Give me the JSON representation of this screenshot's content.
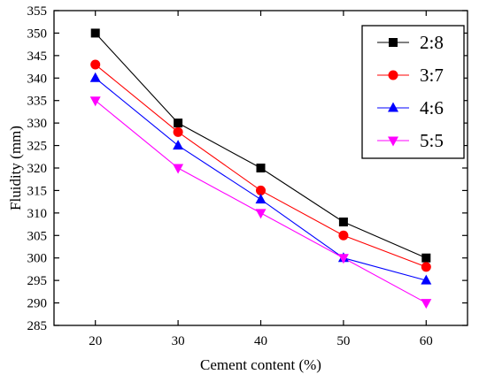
{
  "chart_data": {
    "type": "line",
    "title": "",
    "xlabel": "Cement content (%)",
    "ylabel": "Fluidity (mm)",
    "x": [
      20,
      30,
      40,
      50,
      60
    ],
    "xticks": [
      20,
      30,
      40,
      50,
      60
    ],
    "xlim": [
      15,
      65
    ],
    "yticks": [
      285,
      290,
      295,
      300,
      305,
      310,
      315,
      320,
      325,
      330,
      335,
      340,
      345,
      350,
      355
    ],
    "ylim": [
      285,
      355
    ],
    "grid": false,
    "legend_position": "top-right",
    "series": [
      {
        "name": "2:8",
        "values": [
          350,
          330,
          320,
          308,
          300
        ],
        "color": "#000000",
        "marker": "square"
      },
      {
        "name": "3:7",
        "values": [
          343,
          328,
          315,
          305,
          298
        ],
        "color": "#ff0000",
        "marker": "circle"
      },
      {
        "name": "4:6",
        "values": [
          340,
          325,
          313,
          300,
          295
        ],
        "color": "#0000ff",
        "marker": "triangle-up"
      },
      {
        "name": "5:5",
        "values": [
          335,
          320,
          310,
          300,
          290
        ],
        "color": "#ff00ff",
        "marker": "triangle-down"
      }
    ]
  }
}
